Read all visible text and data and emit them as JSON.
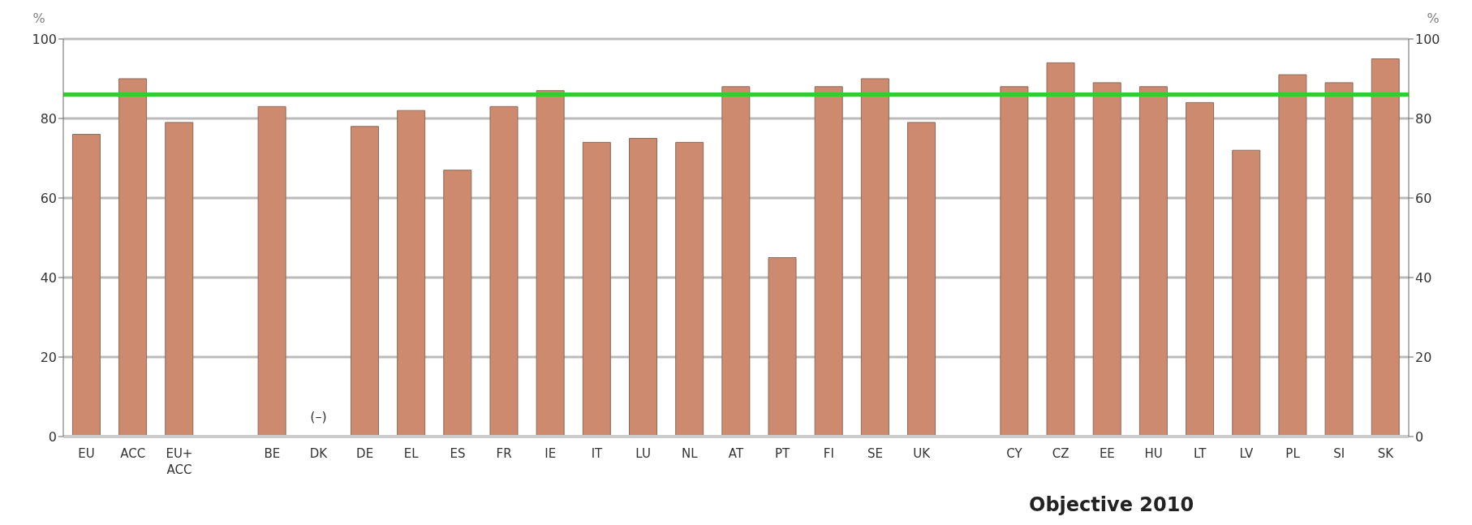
{
  "chart_data": {
    "type": "bar",
    "ylabel": "%",
    "y2label": "%",
    "categories": [
      "EU",
      "ACC",
      "EU+\nACC",
      null,
      "BE",
      "DK",
      "DE",
      "EL",
      "ES",
      "FR",
      "IE",
      "IT",
      "LU",
      "NL",
      "AT",
      "PT",
      "FI",
      "SE",
      "UK",
      null,
      "CY",
      "CZ",
      "EE",
      "HU",
      "LT",
      "LV",
      "PL",
      "SI",
      "SK"
    ],
    "values": [
      76,
      90,
      79,
      null,
      83,
      null,
      78,
      82,
      67,
      83,
      87,
      74,
      75,
      74,
      88,
      45,
      88,
      90,
      79,
      null,
      88,
      94,
      89,
      88,
      84,
      72,
      91,
      89,
      95
    ],
    "color": "#cd8a6e",
    "ylim": [
      0,
      100
    ],
    "yticks": [
      0,
      20,
      40,
      60,
      80,
      100
    ],
    "y2lim": [
      0,
      100
    ],
    "y2ticks": [
      0,
      20,
      40,
      60,
      80,
      100
    ],
    "grid": "y",
    "ref_lines": [
      {
        "axis": "y",
        "value": 86,
        "color": "#33cc33",
        "line_style": "solid"
      }
    ],
    "annotations": [
      "(–)",
      "Objective 2010"
    ]
  }
}
